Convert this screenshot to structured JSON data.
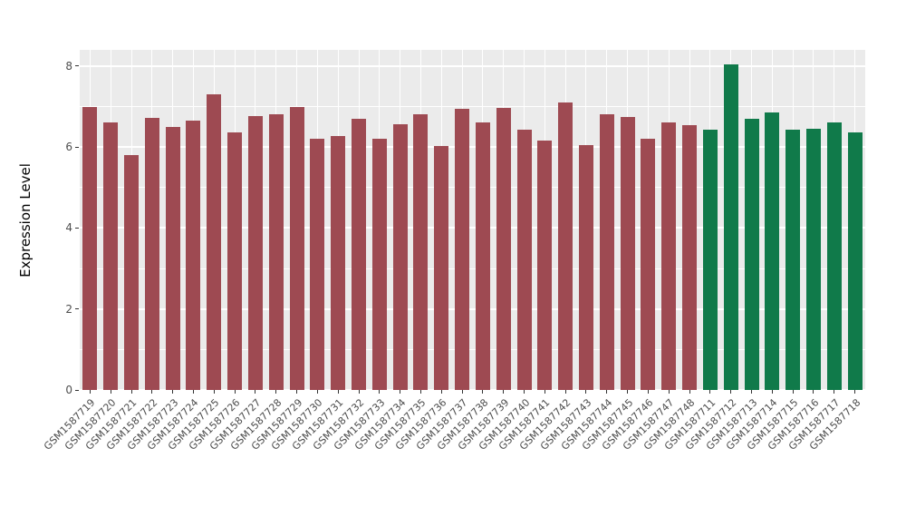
{
  "chart_data": {
    "type": "bar",
    "title": "",
    "xlabel": "",
    "ylabel": "Expression Level",
    "ylim": [
      0,
      8.4
    ],
    "yticks": [
      0,
      2,
      4,
      6,
      8
    ],
    "yticks_minor": [
      1,
      3,
      5,
      7
    ],
    "grid": true,
    "legend": "none",
    "panel_background": "#EBEBEB",
    "grid_color": "#FFFFFF",
    "tick_label_color": "#4D4D4D",
    "categories": [
      "GSM1587719",
      "GSM1587720",
      "GSM1587721",
      "GSM1587722",
      "GSM1587723",
      "GSM1587724",
      "GSM1587725",
      "GSM1587726",
      "GSM1587727",
      "GSM1587728",
      "GSM1587729",
      "GSM1587730",
      "GSM1587731",
      "GSM1587732",
      "GSM1587733",
      "GSM1587734",
      "GSM1587735",
      "GSM1587736",
      "GSM1587737",
      "GSM1587738",
      "GSM1587739",
      "GSM1587740",
      "GSM1587741",
      "GSM1587742",
      "GSM1587743",
      "GSM1587744",
      "GSM1587745",
      "GSM1587746",
      "GSM1587747",
      "GSM1587748",
      "GSM1587711",
      "GSM1587712",
      "GSM1587713",
      "GSM1587714",
      "GSM1587715",
      "GSM1587716",
      "GSM1587717",
      "GSM1587718"
    ],
    "values": [
      6.98,
      6.6,
      5.8,
      6.72,
      6.5,
      6.65,
      7.3,
      6.37,
      6.77,
      6.82,
      6.98,
      6.2,
      6.27,
      6.7,
      6.2,
      6.57,
      6.8,
      6.02,
      6.95,
      6.6,
      6.97,
      6.42,
      6.15,
      7.1,
      6.05,
      6.8,
      6.75,
      6.2,
      6.6,
      6.55,
      6.42,
      8.05,
      6.7,
      6.85,
      6.42,
      6.45,
      6.6,
      6.37
    ],
    "groups": [
      {
        "name": "group-red",
        "color": "#9E4A52",
        "start_index": 0,
        "end_index": 29
      },
      {
        "name": "group-green",
        "color": "#107A4A",
        "start_index": 30,
        "end_index": 37
      }
    ]
  }
}
